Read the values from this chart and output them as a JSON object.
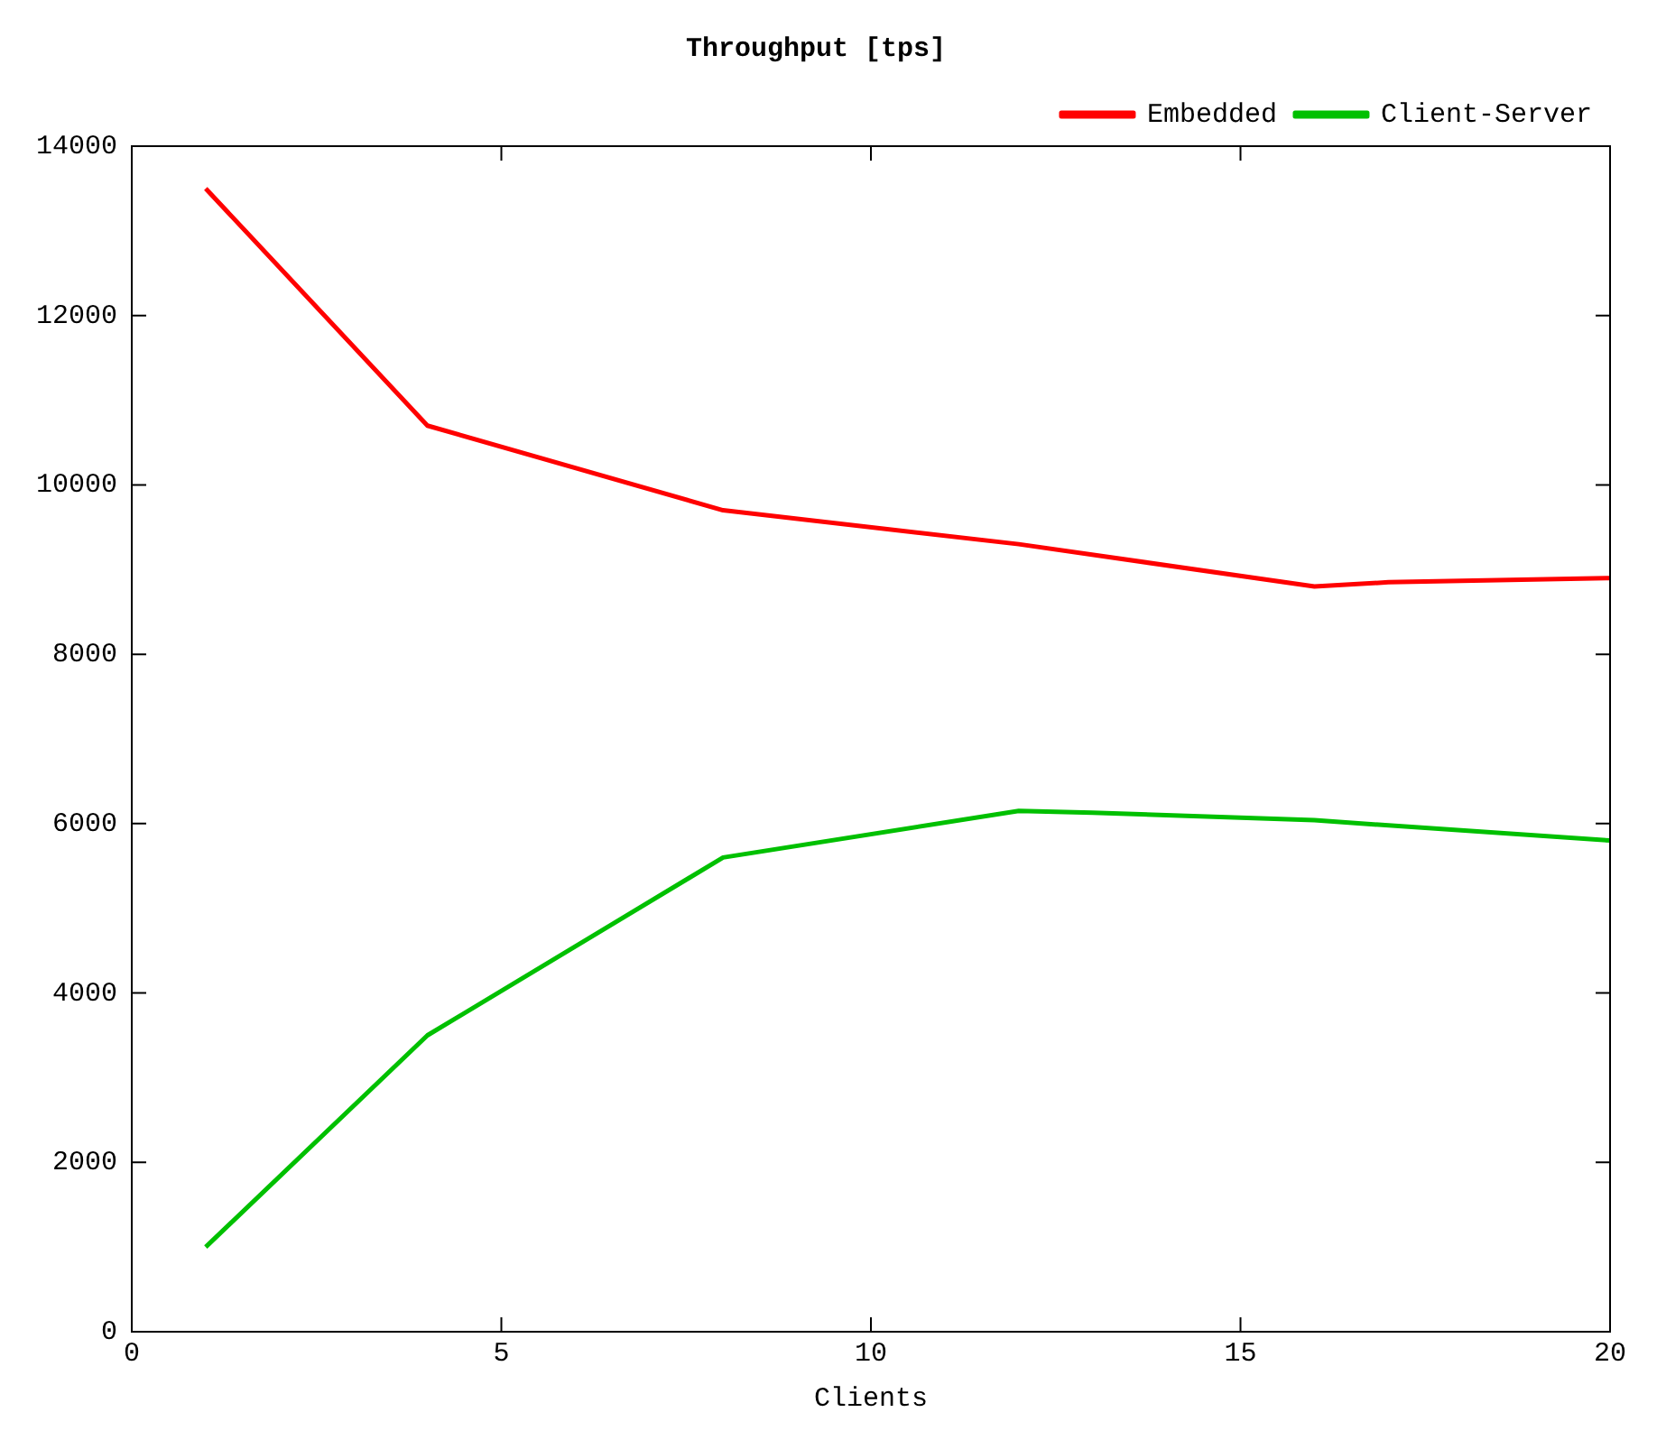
{
  "chart_data": {
    "type": "line",
    "title": "Throughput [tps]",
    "xlabel": "Clients",
    "xlim": [
      0,
      20
    ],
    "xticks": [
      0,
      5,
      10,
      15,
      20
    ],
    "ylim": [
      0,
      14000
    ],
    "yticks": [
      0,
      2000,
      4000,
      6000,
      8000,
      10000,
      12000,
      14000
    ],
    "grid": false,
    "legend": "top right",
    "marker": "none",
    "line_style": "solid",
    "series": [
      {
        "name": "Embedded",
        "color": "#ff0000",
        "x": [
          1,
          4,
          8,
          12,
          16,
          17,
          20
        ],
        "values": [
          13500,
          10700,
          9700,
          9300,
          8800,
          8850,
          8900
        ]
      },
      {
        "name": "Client-Server",
        "color": "#00c000",
        "x": [
          1,
          4,
          8,
          12,
          13,
          16,
          20
        ],
        "values": [
          1000,
          3500,
          5600,
          6150,
          6130,
          6040,
          5800
        ]
      }
    ]
  }
}
